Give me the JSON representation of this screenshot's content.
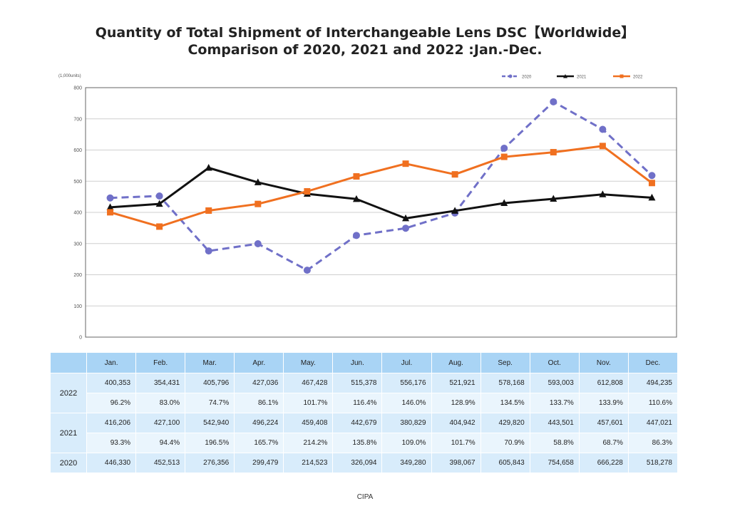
{
  "chart_data": {
    "type": "line",
    "title": "Quantity of Total Shipment of Interchangeable Lens DSC【Worldwide】",
    "subtitle": "Comparison of 2020, 2021 and 2022 :Jan.-Dec.",
    "ylabel": "(1,000units)",
    "xlabel": "",
    "ylim": [
      0,
      800
    ],
    "yticks": [
      "0",
      "100",
      "200",
      "300",
      "400",
      "500",
      "600",
      "700",
      "800"
    ],
    "grid": true,
    "legend_position": "top-right",
    "categories": [
      "Jan.",
      "Feb.",
      "Mar.",
      "Apr.",
      "May.",
      "Jun.",
      "Jul.",
      "Aug.",
      "Sep.",
      "Oct.",
      "Nov.",
      "Dec."
    ],
    "series": [
      {
        "name": "2020",
        "color": "#7070c8",
        "style": "dashed",
        "marker": "circle",
        "values": [
          446.33,
          452.513,
          276.356,
          299.479,
          214.523,
          326.094,
          349.28,
          398.067,
          605.843,
          754.658,
          666.228,
          518.278
        ]
      },
      {
        "name": "2021",
        "color": "#111111",
        "style": "solid",
        "marker": "triangle",
        "values": [
          416.206,
          427.1,
          542.94,
          496.224,
          459.408,
          442.679,
          380.829,
          404.942,
          429.82,
          443.501,
          457.601,
          447.021
        ]
      },
      {
        "name": "2022",
        "color": "#f07020",
        "style": "solid",
        "marker": "square",
        "values": [
          400.353,
          354.431,
          405.796,
          427.036,
          467.428,
          515.378,
          556.176,
          521.921,
          578.168,
          593.003,
          612.808,
          494.235
        ]
      }
    ]
  },
  "table": {
    "months": [
      "Jan.",
      "Feb.",
      "Mar.",
      "Apr.",
      "May.",
      "Jun.",
      "Jul.",
      "Aug.",
      "Sep.",
      "Oct.",
      "Nov.",
      "Dec."
    ],
    "rows": [
      {
        "year": "2022",
        "values": [
          "400,353",
          "354,431",
          "405,796",
          "427,036",
          "467,428",
          "515,378",
          "556,176",
          "521,921",
          "578,168",
          "593,003",
          "612,808",
          "494,235"
        ],
        "percents": [
          "96.2%",
          "83.0%",
          "74.7%",
          "86.1%",
          "101.7%",
          "116.4%",
          "146.0%",
          "128.9%",
          "134.5%",
          "133.7%",
          "133.9%",
          "110.6%"
        ]
      },
      {
        "year": "2021",
        "values": [
          "416,206",
          "427,100",
          "542,940",
          "496,224",
          "459,408",
          "442,679",
          "380,829",
          "404,942",
          "429,820",
          "443,501",
          "457,601",
          "447,021"
        ],
        "percents": [
          "93.3%",
          "94.4%",
          "196.5%",
          "165.7%",
          "214.2%",
          "135.8%",
          "109.0%",
          "101.7%",
          "70.9%",
          "58.8%",
          "68.7%",
          "86.3%"
        ]
      },
      {
        "year": "2020",
        "values": [
          "446,330",
          "452,513",
          "276,356",
          "299,479",
          "214,523",
          "326,094",
          "349,280",
          "398,067",
          "605,843",
          "754,658",
          "666,228",
          "518,278"
        ]
      }
    ]
  },
  "source": "CIPA"
}
